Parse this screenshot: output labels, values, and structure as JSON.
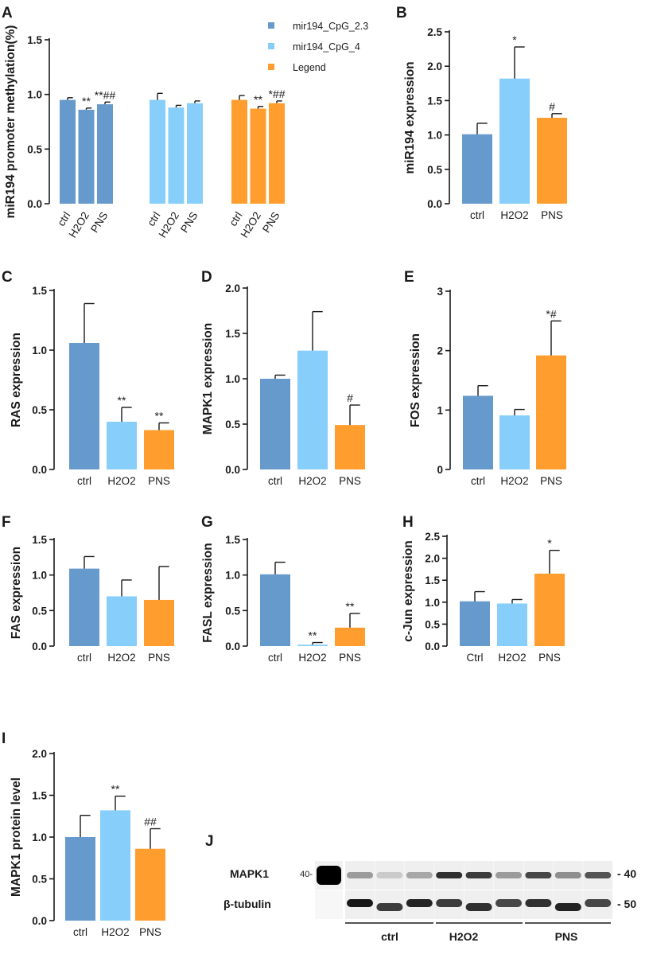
{
  "colors": {
    "ctrl": "#6699CC",
    "h2o2": "#87CEFA",
    "pns": "#FF9D2E",
    "axis": "#1a1a1a"
  },
  "chart_data": [
    {
      "id": "A",
      "type": "bar",
      "panel_label": "A",
      "ylabel": "miR194 promoter methylation(%)",
      "ylim": [
        0,
        1.5
      ],
      "yticks": [
        "0.0",
        "0.5",
        "1.0",
        "1.5"
      ],
      "categories": [
        "ctrl",
        "H2O2",
        "PNS"
      ],
      "rotated_labels": true,
      "legend": [
        "mir194_CpG_2.3",
        "mir194_CpG_4",
        "Legend"
      ],
      "series": [
        {
          "name": "mir194_CpG_2.3",
          "values": [
            0.95,
            0.86,
            0.91
          ],
          "errors": [
            0.02,
            0.015,
            0.02
          ],
          "annotations": [
            "",
            "**",
            "**##"
          ]
        },
        {
          "name": "mir194_CpG_4",
          "values": [
            0.95,
            0.88,
            0.92
          ],
          "errors": [
            0.06,
            0.02,
            0.02
          ],
          "annotations": [
            "",
            "",
            ""
          ]
        },
        {
          "name": "Legend",
          "values": [
            0.95,
            0.87,
            0.92
          ],
          "errors": [
            0.04,
            0.02,
            0.02
          ],
          "annotations": [
            "",
            "**",
            "*##"
          ]
        }
      ]
    },
    {
      "id": "B",
      "type": "bar",
      "panel_label": "B",
      "ylabel": "miR194 expression",
      "ylim": [
        0,
        2.5
      ],
      "yticks": [
        "0.0",
        "0.5",
        "1.0",
        "1.5",
        "2.0",
        "2.5"
      ],
      "categories": [
        "ctrl",
        "H2O2",
        "PNS"
      ],
      "values": [
        1.01,
        1.82,
        1.25
      ],
      "errors": [
        0.16,
        0.46,
        0.06
      ],
      "annotations": [
        "",
        "*",
        "#"
      ]
    },
    {
      "id": "C",
      "type": "bar",
      "panel_label": "C",
      "ylabel": "RAS expression",
      "ylim": [
        0,
        1.5
      ],
      "yticks": [
        "0.0",
        "0.5",
        "1.0",
        "1.5"
      ],
      "categories": [
        "ctrl",
        "H2O2",
        "PNS"
      ],
      "values": [
        1.06,
        0.4,
        0.33
      ],
      "errors": [
        0.33,
        0.12,
        0.06
      ],
      "annotations": [
        "",
        "**",
        "**"
      ]
    },
    {
      "id": "D",
      "type": "bar",
      "panel_label": "D",
      "ylabel": "MAPK1 expression",
      "ylim": [
        0,
        2.0
      ],
      "yticks": [
        "0.0",
        "0.5",
        "1.0",
        "1.5",
        "2.0"
      ],
      "categories": [
        "ctrl",
        "H2O2",
        "PNS"
      ],
      "values": [
        1.0,
        1.31,
        0.49
      ],
      "errors": [
        0.04,
        0.43,
        0.22
      ],
      "annotations": [
        "",
        "",
        "#"
      ]
    },
    {
      "id": "E",
      "type": "bar",
      "panel_label": "E",
      "ylabel": "FOS expression",
      "ylim": [
        0,
        3
      ],
      "yticks": [
        "0",
        "1",
        "2",
        "3"
      ],
      "categories": [
        "ctrl",
        "H2O2",
        "PNS"
      ],
      "values": [
        1.24,
        0.91,
        1.92
      ],
      "errors": [
        0.17,
        0.1,
        0.58
      ],
      "annotations": [
        "",
        "",
        "*#"
      ]
    },
    {
      "id": "F",
      "type": "bar",
      "panel_label": "F",
      "ylabel": "FAS expression",
      "ylim": [
        0,
        1.5
      ],
      "yticks": [
        "0.0",
        "0.5",
        "1.0",
        "1.5"
      ],
      "categories": [
        "ctrl",
        "H2O2",
        "PNS"
      ],
      "values": [
        1.09,
        0.7,
        0.65
      ],
      "errors": [
        0.17,
        0.23,
        0.47
      ],
      "annotations": [
        "",
        "",
        ""
      ]
    },
    {
      "id": "G",
      "type": "bar",
      "panel_label": "G",
      "ylabel": "FASL expression",
      "ylim": [
        0,
        1.5
      ],
      "yticks": [
        "0.0",
        "0.5",
        "1.0",
        "1.5"
      ],
      "categories": [
        "ctrl",
        "H2O2",
        "PNS"
      ],
      "values": [
        1.01,
        0.02,
        0.26
      ],
      "errors": [
        0.17,
        0.03,
        0.2
      ],
      "annotations": [
        "",
        "**",
        "**"
      ]
    },
    {
      "id": "H",
      "type": "bar",
      "panel_label": "H",
      "ylabel": "c-Jun expression",
      "ylim": [
        0,
        2.5
      ],
      "yticks": [
        "0.0",
        "0.5",
        "1.0",
        "1.5",
        "2.0",
        "2.5"
      ],
      "categories": [
        "Ctrl",
        "H2O2",
        "PNS"
      ],
      "subscript_category": 1,
      "values": [
        1.02,
        0.97,
        1.65
      ],
      "errors": [
        0.22,
        0.09,
        0.53
      ],
      "annotations": [
        "",
        "",
        "*"
      ]
    },
    {
      "id": "I",
      "type": "bar",
      "panel_label": "I",
      "ylabel": "MAPK1 protein level",
      "ylim": [
        0,
        2.0
      ],
      "yticks": [
        "0.0",
        "0.5",
        "1.0",
        "1.5",
        "2.0"
      ],
      "categories": [
        "ctrl",
        "H2O2",
        "PNS"
      ],
      "values": [
        1.0,
        1.32,
        0.86
      ],
      "errors": [
        0.26,
        0.17,
        0.24
      ],
      "annotations": [
        "",
        "**",
        "##"
      ]
    }
  ],
  "blot": {
    "panel_label": "J",
    "row_labels": [
      "MAPK1",
      "β-tubulin"
    ],
    "ladder_mark": "40-",
    "size_markers": [
      "40",
      "50"
    ],
    "group_labels": [
      "ctrl",
      "H2O2",
      "PNS"
    ],
    "mapk1_intensity": [
      0.35,
      0.15,
      0.3,
      0.8,
      0.75,
      0.35,
      0.7,
      0.4,
      0.65
    ],
    "tubulin_intensity": [
      0.9,
      0.75,
      0.85,
      0.75,
      0.8,
      0.7,
      0.8,
      0.85,
      0.7
    ]
  }
}
